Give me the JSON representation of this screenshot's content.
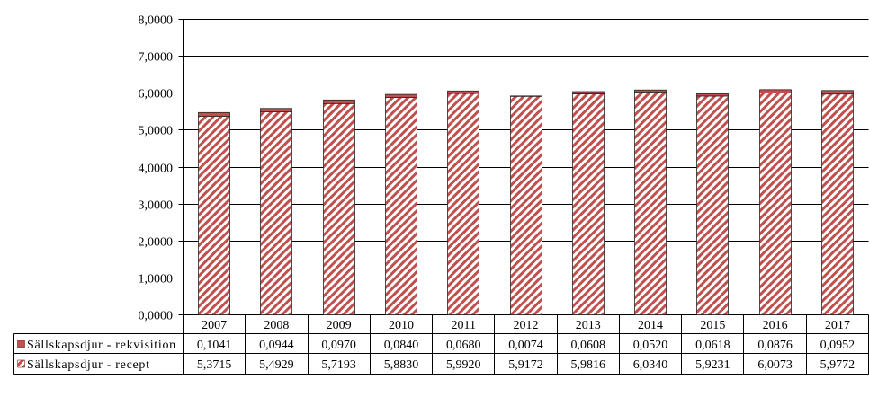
{
  "chart_data": {
    "type": "bar",
    "stacked": true,
    "categories": [
      "2007",
      "2008",
      "2009",
      "2010",
      "2011",
      "2012",
      "2013",
      "2014",
      "2015",
      "2016",
      "2017"
    ],
    "ylim": [
      0,
      8
    ],
    "yticks": [
      0,
      1,
      2,
      3,
      4,
      5,
      6,
      7,
      8
    ],
    "ytick_labels": [
      "0,0000",
      "1,0000",
      "2,0000",
      "3,0000",
      "4,0000",
      "5,0000",
      "6,0000",
      "7,0000",
      "8,0000"
    ],
    "grid": true,
    "legend": "bottom",
    "series": [
      {
        "name": "Sällskapsdjur - rekvisition",
        "values": [
          0.1041,
          0.0944,
          0.097,
          0.084,
          0.068,
          0.0074,
          0.0608,
          0.052,
          0.0618,
          0.0876,
          0.0952
        ],
        "value_labels": [
          "0,1041",
          "0,0944",
          "0,0970",
          "0,0840",
          "0,0680",
          "0,0074",
          "0,0608",
          "0,0520",
          "0,0618",
          "0,0876",
          "0,0952"
        ],
        "color": "#C0504D",
        "fill": "solid"
      },
      {
        "name": "Sällskapsdjur - recept",
        "values": [
          5.3715,
          5.4929,
          5.7193,
          5.883,
          5.992,
          5.9172,
          5.9816,
          6.034,
          5.9231,
          6.0073,
          5.9772
        ],
        "value_labels": [
          "5,3715",
          "5,4929",
          "5,7193",
          "5,8830",
          "5,9920",
          "5,9172",
          "5,9816",
          "6,0340",
          "5,9231",
          "6,0073",
          "5,9772"
        ],
        "color": "#C0504D",
        "fill": "hatched"
      }
    ]
  }
}
